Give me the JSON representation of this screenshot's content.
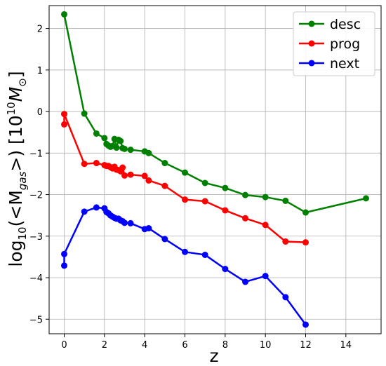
{
  "chart_data": {
    "type": "line",
    "title": "",
    "xlabel": "z",
    "ylabel": "log10(<M_gas>) [10^10 M_sun]",
    "ylabel_parts": {
      "base": "log",
      "base_sub": "10",
      "open": "(<M",
      "m_sub": "gas",
      "close": ">) [10",
      "exp": "10",
      "unit": "M",
      "unit_sub": "⊙",
      "end": "]"
    },
    "xlim": [
      -0.75,
      15.75
    ],
    "ylim": [
      -5.35,
      2.55
    ],
    "xticks": [
      0,
      2,
      4,
      6,
      8,
      10,
      12,
      14
    ],
    "xtick_labels": [
      "0",
      "2",
      "4",
      "6",
      "8",
      "10",
      "12",
      "14"
    ],
    "yticks": [
      -5,
      -4,
      -3,
      -2,
      -1,
      0,
      1,
      2
    ],
    "ytick_labels": [
      "−5",
      "−4",
      "−3",
      "−2",
      "−1",
      "0",
      "1",
      "2"
    ],
    "grid": true,
    "legend_position": "top-right",
    "series": [
      {
        "name": "desc",
        "color": "#008000",
        "x": [
          0,
          1,
          1.6,
          2.0,
          2.1,
          2.2,
          2.3,
          2.4,
          2.5,
          2.6,
          2.7,
          2.8,
          2.9,
          3.0,
          3.3,
          4.0,
          4.2,
          5.0,
          6.0,
          7.0,
          8.0,
          9.0,
          10.0,
          11.0,
          12.0,
          15.0
        ],
        "y": [
          2.34,
          -0.05,
          -0.53,
          -0.64,
          -0.78,
          -0.82,
          -0.85,
          -0.83,
          -0.66,
          -0.87,
          -0.68,
          -0.71,
          -0.88,
          -0.9,
          -0.92,
          -0.96,
          -1.0,
          -1.24,
          -1.47,
          -1.72,
          -1.84,
          -2.01,
          -2.06,
          -2.15,
          -2.43,
          -2.09
        ]
      },
      {
        "name": "prog",
        "color": "#ff0000",
        "x": [
          0,
          0,
          1,
          1.6,
          2.0,
          2.1,
          2.2,
          2.3,
          2.4,
          2.5,
          2.6,
          2.7,
          2.8,
          2.9,
          3.0,
          3.3,
          4.0,
          4.2,
          5.0,
          6.0,
          7.0,
          8.0,
          9.0,
          10.0,
          11.0,
          12.0
        ],
        "y": [
          -0.31,
          -0.06,
          -1.26,
          -1.24,
          -1.29,
          -1.31,
          -1.31,
          -1.34,
          -1.37,
          -1.33,
          -1.4,
          -1.41,
          -1.44,
          -1.35,
          -1.54,
          -1.52,
          -1.55,
          -1.66,
          -1.79,
          -2.12,
          -2.16,
          -2.38,
          -2.57,
          -2.73,
          -3.13,
          -3.15
        ]
      },
      {
        "name": "next",
        "color": "#0000ff",
        "x": [
          0,
          0,
          1,
          1.6,
          2.0,
          2.1,
          2.2,
          2.3,
          2.4,
          2.5,
          2.6,
          2.7,
          2.8,
          2.9,
          3.0,
          3.3,
          4.0,
          4.2,
          5.0,
          6.0,
          7.0,
          8.0,
          9.0,
          10.0,
          11.0,
          12.0
        ],
        "y": [
          -3.71,
          -3.43,
          -2.41,
          -2.31,
          -2.33,
          -2.42,
          -2.45,
          -2.5,
          -2.53,
          -2.56,
          -2.58,
          -2.58,
          -2.62,
          -2.64,
          -2.68,
          -2.69,
          -2.83,
          -2.81,
          -3.07,
          -3.38,
          -3.45,
          -3.79,
          -4.1,
          -3.96,
          -4.47,
          -5.13
        ]
      }
    ]
  }
}
